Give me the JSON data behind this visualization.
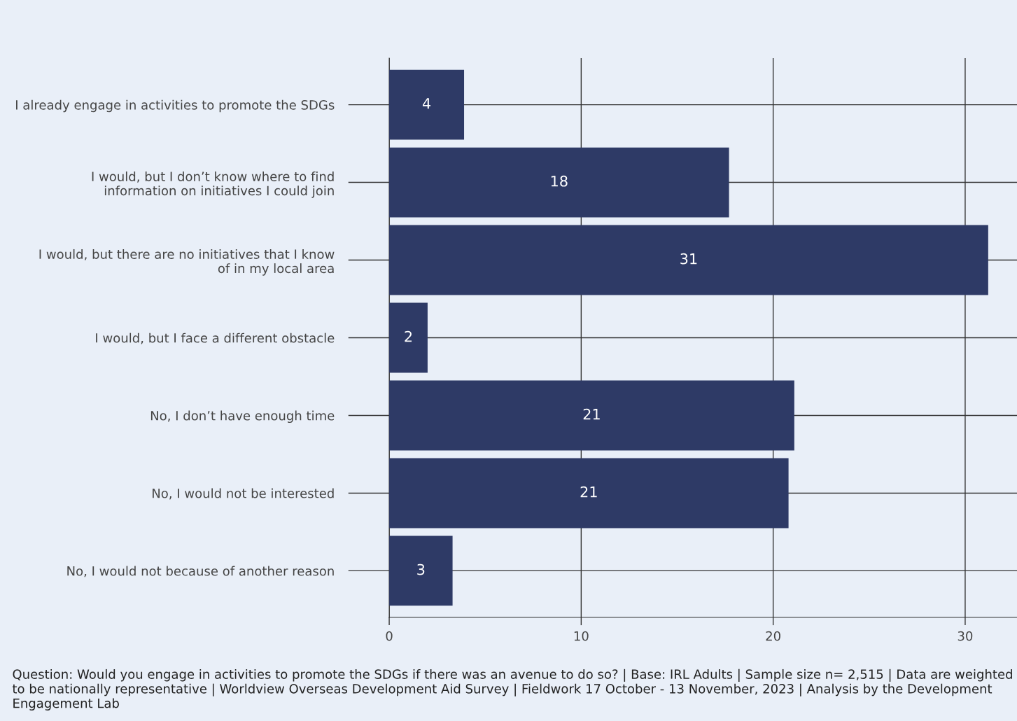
{
  "chart_data": {
    "type": "bar",
    "orientation": "horizontal",
    "categories": [
      "I already engage in activities to promote the SDGs",
      "I would, but I don’t know where to find\ninformation on initiatives I could join",
      "I would, but there are no initiatives that I know\nof in my local area",
      "I would, but I face a different obstacle",
      "No, I don’t have enough time",
      "No, I would not be interested",
      "No, I would not because of another reason"
    ],
    "values": [
      3.9,
      17.7,
      31.2,
      2.0,
      21.1,
      20.8,
      3.3
    ],
    "value_labels": [
      "4",
      "18",
      "31",
      "2",
      "21",
      "21",
      "3"
    ],
    "color": "#2e3a66",
    "xlim": [
      0,
      32.7
    ],
    "xticks": [
      0,
      10,
      20,
      30
    ],
    "grid": true,
    "annotations": [
      "Question: Would you engage in activities to promote the SDGs if there was an avenue to do so? | Base: IRL Adults | Sample size n= 2,515 | Data are weighted to be nationally representative | Worldview Overseas Development Aid Survey | Fieldwork 17 October - 13 November, 2023 | Analysis by the Development Engagement Lab"
    ]
  }
}
